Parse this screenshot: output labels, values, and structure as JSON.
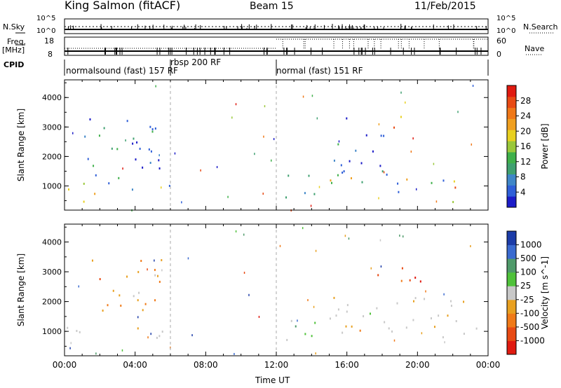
{
  "header": {
    "station": "King Salmon (fitACF)",
    "beam": "Beam 15",
    "date": "11/Feb/2015"
  },
  "top_panels": {
    "nsky_label": "N.Sky",
    "nsearch_label": "N.Search",
    "nsky_ticks": [
      "10^5",
      "10^0"
    ],
    "nsearch_ticks": [
      "10^5",
      "10^0"
    ],
    "freq_label_1": "Freq.",
    "freq_label_2": "[MHz]",
    "freq_ticks": [
      "18",
      "8"
    ],
    "nave_label": "Nave",
    "nave_ticks": [
      "60",
      "0"
    ],
    "cpid_label": "CPID",
    "cpid_segments": [
      {
        "start": 0,
        "end": 6,
        "label": "normalsound (fast) 157 RF"
      },
      {
        "start": 6,
        "end": 12,
        "label": "rbsp 200 RF"
      },
      {
        "start": 12,
        "end": 24,
        "label": "normal (fast) 151 RF"
      }
    ]
  },
  "axes": {
    "ylabel": "Slant Range [km]",
    "xlabel": "Time UT",
    "x_ticks": [
      "00:00",
      "04:00",
      "08:00",
      "12:00",
      "16:00",
      "20:00",
      "00:00"
    ],
    "y_ticks": [
      "1000",
      "2000",
      "3000",
      "4000"
    ]
  },
  "power_colorbar": {
    "label": "Power [dB]",
    "ticks": [
      "4",
      "8",
      "12",
      "16",
      "20",
      "24",
      "28"
    ],
    "colors": [
      "#1c1cc8",
      "#2f5fd8",
      "#3f86c8",
      "#3fa070",
      "#3fb04a",
      "#9ac83a",
      "#e8d020",
      "#f0a020",
      "#f07818",
      "#e84a14",
      "#e01a10"
    ]
  },
  "velocity_colorbar": {
    "label": "Velocity [m s^-1]",
    "ticks": [
      "1000",
      "500",
      "100",
      "25",
      "-25",
      "-100",
      "-500",
      "-1000"
    ],
    "colors": [
      "#1c3ca8",
      "#3a6ad0",
      "#4f9a6a",
      "#4fc23a",
      "#c8c8c8",
      "#e8a020",
      "#f07a18",
      "#e84a14",
      "#e01a10"
    ]
  },
  "chart_data": [
    {
      "type": "heatmap",
      "title": "Power",
      "xlabel": "Time UT",
      "ylabel": "Slant Range [km]",
      "xlim": [
        0,
        24
      ],
      "ylim": [
        180,
        4600
      ],
      "blobs": [
        {
          "t0": 0.0,
          "t1": 6.2,
          "r0": 750,
          "r1": 1150,
          "level": "strong"
        },
        {
          "t0": 1.0,
          "t1": 5.8,
          "r0": 1200,
          "r1": 3500,
          "level": "weak"
        },
        {
          "t0": 0.0,
          "t1": 2.0,
          "r0": 400,
          "r1": 600,
          "level": "medium"
        },
        {
          "t0": 12.4,
          "t1": 14.8,
          "r0": 500,
          "r1": 1400,
          "level": "medium"
        },
        {
          "t0": 14.8,
          "t1": 24.0,
          "r0": 800,
          "r1": 1300,
          "level": "strong"
        },
        {
          "t0": 15.2,
          "t1": 18.5,
          "r0": 1300,
          "r1": 3500,
          "level": "weak"
        },
        {
          "t0": 18.5,
          "t1": 20.0,
          "r0": 2800,
          "r1": 3400,
          "level": "strong"
        },
        {
          "t0": 21.0,
          "t1": 23.0,
          "r0": 400,
          "r1": 600,
          "level": "medium"
        }
      ]
    },
    {
      "type": "heatmap",
      "title": "Velocity",
      "xlabel": "Time UT",
      "ylabel": "Slant Range [km]",
      "xlim": [
        0,
        24
      ],
      "ylim": [
        180,
        4600
      ],
      "blobs": [
        {
          "t0": 0.0,
          "t1": 6.2,
          "r0": 750,
          "r1": 1200,
          "level": "near-zero"
        },
        {
          "t0": 1.5,
          "t1": 5.5,
          "r0": 1300,
          "r1": 3500,
          "level": "away"
        },
        {
          "t0": 12.4,
          "t1": 15.0,
          "r0": 500,
          "r1": 1400,
          "level": "toward"
        },
        {
          "t0": 15.0,
          "t1": 24.0,
          "r0": 800,
          "r1": 2200,
          "level": "near-zero"
        },
        {
          "t0": 15.5,
          "t1": 18.0,
          "r0": 900,
          "r1": 1400,
          "level": "away"
        },
        {
          "t0": 17.5,
          "t1": 20.5,
          "r0": 2700,
          "r1": 3500,
          "level": "strong-away"
        },
        {
          "t0": 15.5,
          "t1": 16.5,
          "r0": 3300,
          "r1": 3500,
          "level": "strong-away"
        }
      ]
    }
  ]
}
